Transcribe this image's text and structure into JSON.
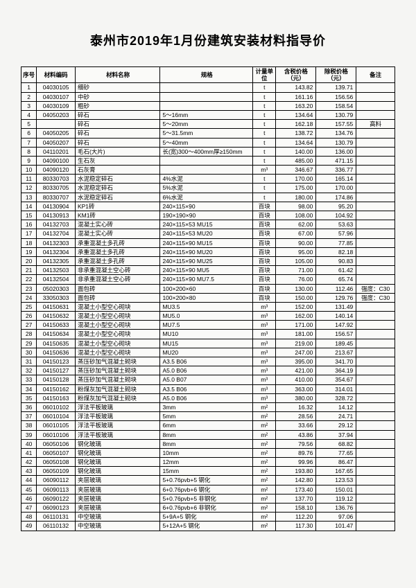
{
  "title": "泰州市2019年1月份建筑安装材料指导价",
  "columns": [
    "序号",
    "材料编码",
    "材料名称",
    "规格",
    "计量单位",
    "含税价格（元）",
    "除税价格（元）",
    "备注"
  ],
  "rows": [
    [
      "1",
      "04030105",
      "细砂",
      "",
      "t",
      "143.82",
      "139.71",
      ""
    ],
    [
      "2",
      "04030107",
      "中砂",
      "",
      "t",
      "161.16",
      "156.56",
      ""
    ],
    [
      "3",
      "04030109",
      "粗砂",
      "",
      "t",
      "163.20",
      "158.54",
      ""
    ],
    [
      "4",
      "04050203",
      "碎石",
      "5～16mm",
      "t",
      "134.64",
      "130.79",
      ""
    ],
    [
      "5",
      "",
      "碎石",
      "5～20mm",
      "t",
      "162.18",
      "157.55",
      "高料"
    ],
    [
      "6",
      "04050205",
      "碎石",
      "5～31.5mm",
      "t",
      "138.72",
      "134.76",
      ""
    ],
    [
      "7",
      "04050207",
      "碎石",
      "5～40mm",
      "t",
      "134.64",
      "130.79",
      ""
    ],
    [
      "8",
      "04110201",
      "毛石(大片)",
      "长(宽)300～400mm厚≥150mm",
      "t",
      "140.00",
      "136.00",
      ""
    ],
    [
      "9",
      "04090100",
      "生石灰",
      "",
      "t",
      "485.00",
      "471.15",
      ""
    ],
    [
      "10",
      "04090120",
      "石灰膏",
      "",
      "m³",
      "346.67",
      "336.77",
      ""
    ],
    [
      "11",
      "80330703",
      "水泥稳定碎石",
      "4%水泥",
      "t",
      "170.00",
      "165.14",
      ""
    ],
    [
      "12",
      "80330705",
      "水泥稳定碎石",
      "5%水泥",
      "t",
      "175.00",
      "170.00",
      ""
    ],
    [
      "13",
      "80330707",
      "水泥稳定碎石",
      "6%水泥",
      "t",
      "180.00",
      "174.86",
      ""
    ],
    [
      "14",
      "04130904",
      "KP1砖",
      "240×115×90",
      "百块",
      "98.00",
      "95.20",
      ""
    ],
    [
      "15",
      "04130913",
      "KM1砖",
      "190×190×90",
      "百块",
      "108.00",
      "104.92",
      ""
    ],
    [
      "16",
      "04132703",
      "混凝土实心砖",
      "240×115×53 MU15",
      "百块",
      "62.00",
      "53.63",
      ""
    ],
    [
      "17",
      "04132704",
      "混凝土实心砖",
      "240×115×53 MU20",
      "百块",
      "67.00",
      "57.96",
      ""
    ],
    [
      "18",
      "04132303",
      "承重混凝土多孔砖",
      "240×115×90 MU15",
      "百块",
      "90.00",
      "77.85",
      ""
    ],
    [
      "19",
      "04132304",
      "承重混凝土多孔砖",
      "240×115×90 MU20",
      "百块",
      "95.00",
      "82.18",
      ""
    ],
    [
      "20",
      "04132305",
      "承重混凝土多孔砖",
      "240×115×90 MU25",
      "百块",
      "105.00",
      "90.83",
      ""
    ],
    [
      "21",
      "04132503",
      "非承重混凝土空心砖",
      "240×115×90 MU5",
      "百块",
      "71.00",
      "61.42",
      ""
    ],
    [
      "22",
      "04132504",
      "非承重混凝土空心砖",
      "240×115×90 MU7.5",
      "百块",
      "76.00",
      "65.74",
      ""
    ],
    [
      "23",
      "05020303",
      "面包砖",
      "100×200×60",
      "百块",
      "130.00",
      "112.46",
      "强度：C30"
    ],
    [
      "24",
      "33050303",
      "面包砖",
      "100×200×80",
      "百块",
      "150.00",
      "129.76",
      "强度：C30"
    ],
    [
      "25",
      "04150631",
      "混凝土小型空心砌块",
      "MU3.5",
      "m³",
      "152.00",
      "131.49",
      ""
    ],
    [
      "26",
      "04150632",
      "混凝土小型空心砌块",
      "MU5.0",
      "m³",
      "162.00",
      "140.14",
      ""
    ],
    [
      "27",
      "04150633",
      "混凝土小型空心砌块",
      "MU7.5",
      "m³",
      "171.00",
      "147.92",
      ""
    ],
    [
      "28",
      "04150634",
      "混凝土小型空心砌块",
      "MU10",
      "m³",
      "181.00",
      "156.57",
      ""
    ],
    [
      "29",
      "04150635",
      "混凝土小型空心砌块",
      "MU15",
      "m³",
      "219.00",
      "189.45",
      ""
    ],
    [
      "30",
      "04150636",
      "混凝土小型空心砌块",
      "MU20",
      "m³",
      "247.00",
      "213.67",
      ""
    ],
    [
      "31",
      "04150123",
      "蒸压砂加气混凝土砌块",
      "A3.5 B06",
      "m³",
      "395.00",
      "341.70",
      ""
    ],
    [
      "32",
      "04150127",
      "蒸压砂加气混凝土砌块",
      "A5.0 B06",
      "m³",
      "421.00",
      "364.19",
      ""
    ],
    [
      "33",
      "04150128",
      "蒸压砂加气混凝土砌块",
      "A5.0 B07",
      "m³",
      "410.00",
      "354.67",
      ""
    ],
    [
      "34",
      "04150162",
      "粉煤灰加气混凝土砌块",
      "A3.5 B06",
      "m³",
      "363.00",
      "314.01",
      ""
    ],
    [
      "35",
      "04150163",
      "粉煤灰加气混凝土砌块",
      "A5.0 B06",
      "m³",
      "380.00",
      "328.72",
      ""
    ],
    [
      "36",
      "06010102",
      "浮法平板玻璃",
      "3mm",
      "m²",
      "16.32",
      "14.12",
      ""
    ],
    [
      "37",
      "06010104",
      "浮法平板玻璃",
      "5mm",
      "m²",
      "28.56",
      "24.71",
      ""
    ],
    [
      "38",
      "06010105",
      "浮法平板玻璃",
      "6mm",
      "m²",
      "33.66",
      "29.12",
      ""
    ],
    [
      "39",
      "06010106",
      "浮法平板玻璃",
      "8mm",
      "m²",
      "43.86",
      "37.94",
      ""
    ],
    [
      "40",
      "06050106",
      "钢化玻璃",
      "8mm",
      "m²",
      "79.56",
      "68.82",
      ""
    ],
    [
      "41",
      "06050107",
      "钢化玻璃",
      "10mm",
      "m²",
      "89.76",
      "77.65",
      ""
    ],
    [
      "42",
      "06050108",
      "钢化玻璃",
      "12mm",
      "m²",
      "99.96",
      "86.47",
      ""
    ],
    [
      "43",
      "06050109",
      "钢化玻璃",
      "15mm",
      "m²",
      "193.80",
      "167.65",
      ""
    ],
    [
      "44",
      "06090112",
      "夹层玻璃",
      "5+0.76pvb+5 钢化",
      "m²",
      "142.80",
      "123.53",
      ""
    ],
    [
      "45",
      "06090113",
      "夹层玻璃",
      "6+0.76pvb+6 钢化",
      "m²",
      "173.40",
      "150.01",
      ""
    ],
    [
      "46",
      "06090122",
      "夹层玻璃",
      "5+0.76pvb+5 非钢化",
      "m²",
      "137.70",
      "119.12",
      ""
    ],
    [
      "47",
      "06090123",
      "夹层玻璃",
      "6+0.76pvb+6 非钢化",
      "m²",
      "158.10",
      "136.76",
      ""
    ],
    [
      "48",
      "06110131",
      "中空玻璃",
      "5+9A+5    钢化",
      "m²",
      "112.20",
      "97.06",
      ""
    ],
    [
      "49",
      "06110132",
      "中空玻璃",
      "5+12A+5    钢化",
      "m²",
      "117.30",
      "101.47",
      ""
    ]
  ]
}
